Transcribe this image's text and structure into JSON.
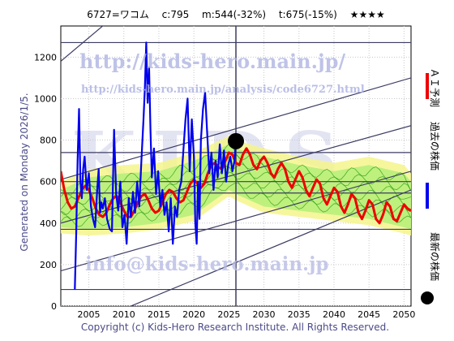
{
  "header": {
    "title": "6727=ワコム　 c:795 　m:544(-32%) 　t:675(-15%) 　★★★★"
  },
  "side_text": "Generated on Monday 2026/1/5.",
  "copyright": "Copyright (c) Kids-Hero Research Institute. All Rights Reserved.",
  "watermarks": {
    "url": "http://kids-hero.main.jp/",
    "analysis": "http://kids-hero.main.jp/analysis/code6727.html",
    "email": "info@kids-hero.main.jp",
    "big": "KIDS"
  },
  "legend": {
    "forecast": "ＡＩ予測",
    "past": "過去の株価",
    "latest": "最新の株価"
  },
  "colors": {
    "past": "#0000ee",
    "forecast": "#ee0000",
    "band_fill": "#b8f07a",
    "band_line": "#2a9a10",
    "yellow": "#f4f48c",
    "grid": "#3c3c64",
    "marker": "#000000"
  },
  "chart_data": {
    "type": "line",
    "title": "6727=ワコム　 c:795 　m:544(-32%) 　t:675(-15%) 　★★★★",
    "xlim": [
      2001,
      2051
    ],
    "ylim": [
      0,
      1350
    ],
    "x_ticks": [
      2005,
      2010,
      2015,
      2020,
      2025,
      2030,
      2035,
      2040,
      2045,
      2050
    ],
    "y_ticks": [
      0,
      200,
      400,
      600,
      800,
      1000,
      1200
    ],
    "hlines": [
      80,
      370,
      545,
      600,
      740,
      1270
    ],
    "vline": 2026,
    "latest": {
      "x": 2026.0,
      "y": 795
    },
    "trend_lines": [
      {
        "x": [
          2001,
          2051
        ],
        "y": [
          1180,
          2600
        ]
      },
      {
        "x": [
          2001,
          2051
        ],
        "y": [
          610,
          1100
        ]
      },
      {
        "x": [
          2001,
          2051
        ],
        "y": [
          400,
          870
        ]
      },
      {
        "x": [
          2001,
          2051
        ],
        "y": [
          170,
          650
        ]
      },
      {
        "x": [
          2001,
          2051
        ],
        "y": [
          -140,
          560
        ]
      }
    ],
    "series": [
      {
        "name": "過去の株価",
        "x": [
          2003.0,
          2003.2,
          2003.4,
          2003.6,
          2003.8,
          2004.0,
          2004.2,
          2004.4,
          2004.7,
          2005.0,
          2005.3,
          2005.6,
          2005.9,
          2006.2,
          2006.4,
          2006.6,
          2006.8,
          2007.0,
          2007.3,
          2007.6,
          2008.0,
          2008.3,
          2008.6,
          2008.9,
          2009.2,
          2009.5,
          2009.8,
          2010.1,
          2010.4,
          2010.7,
          2011.0,
          2011.3,
          2011.6,
          2011.9,
          2012.2,
          2012.5,
          2012.8,
          2013.0,
          2013.2,
          2013.4,
          2013.6,
          2013.8,
          2014.0,
          2014.3,
          2014.6,
          2014.9,
          2015.2,
          2015.5,
          2015.8,
          2016.1,
          2016.4,
          2016.7,
          2017.0,
          2017.3,
          2017.6,
          2017.9,
          2018.2,
          2018.5,
          2018.8,
          2019.1,
          2019.4,
          2019.7,
          2020.0,
          2020.2,
          2020.4,
          2020.6,
          2020.8,
          2021.0,
          2021.3,
          2021.6,
          2021.9,
          2022.2,
          2022.5,
          2022.8,
          2023.1,
          2023.4,
          2023.7,
          2024.0,
          2024.3,
          2024.6,
          2024.9,
          2025.2,
          2025.5,
          2025.8,
          2026.0
        ],
        "y": [
          80,
          350,
          700,
          950,
          600,
          520,
          660,
          720,
          560,
          640,
          480,
          420,
          380,
          560,
          660,
          450,
          500,
          470,
          520,
          420,
          370,
          360,
          850,
          540,
          460,
          600,
          380,
          440,
          300,
          520,
          430,
          550,
          450,
          600,
          480,
          700,
          900,
          1050,
          1270,
          980,
          1150,
          850,
          620,
          760,
          540,
          650,
          480,
          560,
          440,
          500,
          360,
          520,
          300,
          480,
          430,
          560,
          600,
          750,
          900,
          1000,
          650,
          900,
          720,
          400,
          300,
          600,
          420,
          800,
          950,
          1030,
          830,
          640,
          740,
          560,
          700,
          620,
          780,
          640,
          750,
          600,
          680,
          720,
          650,
          700,
          795
        ]
      },
      {
        "name": "ＡＩ予測",
        "x": [
          2001.0,
          2001.5,
          2002.0,
          2002.5,
          2003.0,
          2003.5,
          2004.0,
          2004.5,
          2005.0,
          2005.5,
          2006.0,
          2006.5,
          2007.0,
          2007.5,
          2008.0,
          2008.5,
          2009.0,
          2009.5,
          2010.0,
          2010.5,
          2011.0,
          2011.5,
          2012.0,
          2012.5,
          2013.0,
          2013.5,
          2014.0,
          2014.5,
          2015.0,
          2015.5,
          2016.0,
          2016.5,
          2017.0,
          2017.5,
          2018.0,
          2018.5,
          2019.0,
          2019.5,
          2020.0,
          2020.5,
          2021.0,
          2021.5,
          2022.0,
          2022.5,
          2023.0,
          2023.5,
          2024.0,
          2024.5,
          2025.0,
          2025.5,
          2026.0,
          2026.5,
          2027.0,
          2027.5,
          2028.0,
          2028.5,
          2029.0,
          2029.5,
          2030.0,
          2030.5,
          2031.0,
          2031.5,
          2032.0,
          2032.5,
          2033.0,
          2033.5,
          2034.0,
          2034.5,
          2035.0,
          2035.5,
          2036.0,
          2036.5,
          2037.0,
          2037.5,
          2038.0,
          2038.5,
          2039.0,
          2039.5,
          2040.0,
          2040.5,
          2041.0,
          2041.5,
          2042.0,
          2042.5,
          2043.0,
          2043.5,
          2044.0,
          2044.5,
          2045.0,
          2045.5,
          2046.0,
          2046.5,
          2047.0,
          2047.5,
          2048.0,
          2048.5,
          2049.0,
          2049.5,
          2050.0,
          2050.5,
          2051.0
        ],
        "y": [
          650,
          560,
          500,
          470,
          480,
          520,
          560,
          580,
          560,
          520,
          470,
          440,
          430,
          450,
          490,
          520,
          530,
          500,
          460,
          430,
          430,
          460,
          500,
          530,
          540,
          510,
          470,
          450,
          460,
          500,
          540,
          560,
          550,
          520,
          500,
          510,
          550,
          590,
          610,
          590,
          570,
          590,
          640,
          680,
          690,
          670,
          660,
          700,
          740,
          730,
          690,
          680,
          730,
          760,
          730,
          680,
          660,
          700,
          720,
          690,
          640,
          620,
          660,
          690,
          660,
          600,
          570,
          610,
          650,
          620,
          560,
          530,
          570,
          610,
          590,
          520,
          490,
          530,
          570,
          550,
          480,
          450,
          490,
          540,
          520,
          450,
          420,
          460,
          510,
          490,
          420,
          400,
          440,
          500,
          480,
          420,
          410,
          450,
          490,
          470,
          460
        ]
      }
    ],
    "band": {
      "x": [
        2001,
        2005,
        2010,
        2015,
        2020,
        2025,
        2026,
        2030,
        2035,
        2040,
        2045,
        2050,
        2051
      ],
      "upper": [
        560,
        620,
        640,
        650,
        700,
        780,
        760,
        720,
        680,
        650,
        680,
        640,
        600
      ],
      "lower": [
        380,
        370,
        380,
        400,
        440,
        560,
        540,
        480,
        460,
        440,
        420,
        380,
        370
      ]
    }
  }
}
